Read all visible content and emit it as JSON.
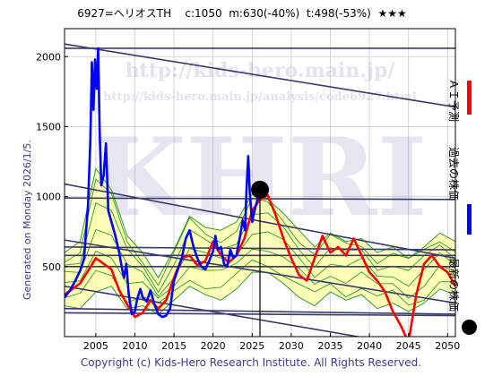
{
  "header": {
    "title": "6927=ヘリオスTH    c:1050  m:630(-40%)  t:498(-53%)  ★★★"
  },
  "footer": {
    "copyright": "Copyright (c) Kids-Hero Research Institute. All Rights Reserved."
  },
  "side": {
    "generated": "Generated on Monday 2026/1/5."
  },
  "watermark": {
    "url1": "http://kids-hero.main.jp/",
    "url2": "http://kids-hero.main.jp/analysis/code6927.html",
    "logo": "KHRI"
  },
  "legend": {
    "ai_label": "ＡＩ予測",
    "past_label": "過去の株価",
    "latest_label": "最新の株価",
    "ai_color": "#ff0000",
    "past_color": "#0000ff",
    "latest_color": "#000000"
  },
  "chart_data": {
    "type": "line",
    "xlim": [
      2001,
      2051
    ],
    "ylim": [
      0,
      2200
    ],
    "x_ticks": [
      2005,
      2010,
      2015,
      2020,
      2025,
      2030,
      2035,
      2040,
      2045,
      2050
    ],
    "y_ticks": [
      500,
      1000,
      1500,
      2000
    ],
    "grid": true,
    "latest_point": {
      "x": 2026.0,
      "y": 1050
    },
    "current_year": 2026.0,
    "colors": {
      "past": "#0000ff",
      "ai": "#ff0000",
      "band_fill": "#ffffa0",
      "band_line": "#2e9c2e",
      "trend": "#3a3a6a"
    },
    "trendlines": [
      {
        "from": [
          2001,
          2090
        ],
        "to": [
          2051,
          1640
        ]
      },
      {
        "from": [
          2001,
          2060
        ],
        "to": [
          2051,
          2060
        ]
      },
      {
        "from": [
          2001,
          1090
        ],
        "to": [
          2051,
          560
        ]
      },
      {
        "from": [
          2001,
          990
        ],
        "to": [
          2051,
          980
        ]
      },
      {
        "from": [
          2001,
          690
        ],
        "to": [
          2051,
          240
        ]
      },
      {
        "from": [
          2001,
          640
        ],
        "to": [
          2051,
          620
        ]
      },
      {
        "from": [
          2001,
          580
        ],
        "to": [
          2051,
          580
        ]
      },
      {
        "from": [
          2001,
          500
        ],
        "to": [
          2051,
          500
        ]
      },
      {
        "from": [
          2001,
          360
        ],
        "to": [
          2051,
          -120
        ]
      },
      {
        "from": [
          2001,
          200
        ],
        "to": [
          2051,
          160
        ]
      },
      {
        "from": [
          2001,
          170
        ],
        "to": [
          2051,
          150
        ]
      }
    ],
    "past_series": {
      "name": "過去の株価",
      "x": [
        2001.0,
        2001.7,
        2002.3,
        2003.0,
        2003.5,
        2004.0,
        2004.3,
        2004.5,
        2004.7,
        2004.9,
        2005.1,
        2005.3,
        2005.5,
        2005.7,
        2006.0,
        2006.3,
        2006.6,
        2007.0,
        2007.5,
        2008.0,
        2008.3,
        2008.6,
        2008.9,
        2009.2,
        2009.6,
        2010.0,
        2010.3,
        2010.7,
        2011.0,
        2011.5,
        2012.0,
        2012.5,
        2013.0,
        2013.5,
        2014.0,
        2014.5,
        2015.0,
        2015.5,
        2016.0,
        2016.5,
        2017.0,
        2017.5,
        2018.0,
        2018.5,
        2019.0,
        2019.5,
        2020.0,
        2020.3,
        2020.6,
        2021.0,
        2021.4,
        2021.8,
        2022.2,
        2022.6,
        2023.0,
        2023.4,
        2023.8,
        2024.1,
        2024.3,
        2024.5,
        2024.7,
        2025.0,
        2025.3,
        2025.6,
        2026.0
      ],
      "y": [
        280,
        330,
        390,
        470,
        560,
        940,
        1400,
        1960,
        1620,
        1980,
        1770,
        2060,
        1460,
        1080,
        1150,
        1380,
        900,
        820,
        720,
        600,
        500,
        420,
        520,
        310,
        160,
        180,
        270,
        340,
        280,
        250,
        330,
        230,
        160,
        140,
        150,
        200,
        400,
        480,
        560,
        700,
        760,
        640,
        560,
        500,
        480,
        540,
        610,
        720,
        620,
        640,
        520,
        500,
        620,
        560,
        580,
        700,
        830,
        760,
        1080,
        1290,
        1020,
        820,
        900,
        960,
        1050
      ]
    },
    "ai_series": {
      "name": "ＡＩ予測",
      "x": [
        2001,
        2002,
        2003,
        2004,
        2005,
        2006,
        2007,
        2008,
        2009,
        2010,
        2011,
        2012,
        2013,
        2014,
        2015,
        2016,
        2017,
        2018,
        2019,
        2020,
        2021,
        2022,
        2023,
        2024,
        2025,
        2026,
        2027,
        2028,
        2029,
        2030,
        2031,
        2032,
        2033,
        2034,
        2035,
        2036,
        2037,
        2038,
        2039,
        2040,
        2041,
        2042,
        2043,
        2044,
        2045,
        2046,
        2047,
        2048,
        2049,
        2050,
        2051
      ],
      "y": [
        300,
        340,
        380,
        470,
        560,
        520,
        480,
        330,
        230,
        140,
        170,
        260,
        200,
        260,
        420,
        560,
        580,
        510,
        540,
        680,
        580,
        530,
        580,
        700,
        900,
        980,
        1010,
        870,
        700,
        560,
        440,
        400,
        560,
        720,
        600,
        640,
        580,
        700,
        580,
        460,
        400,
        320,
        180,
        80,
        -40,
        300,
        520,
        580,
        500,
        460,
        360
      ]
    },
    "band_upper": {
      "x": [
        2001,
        2003,
        2005,
        2007,
        2009,
        2011,
        2013,
        2015,
        2017,
        2019,
        2021,
        2023,
        2025,
        2027,
        2029,
        2031,
        2033,
        2035,
        2037,
        2039,
        2041,
        2043,
        2045,
        2047,
        2049,
        2051
      ],
      "y": [
        600,
        680,
        1200,
        1050,
        720,
        600,
        420,
        620,
        860,
        780,
        760,
        820,
        1020,
        980,
        880,
        760,
        640,
        740,
        680,
        700,
        600,
        640,
        560,
        640,
        740,
        680
      ]
    },
    "band_lower": {
      "x": [
        2001,
        2003,
        2005,
        2007,
        2009,
        2011,
        2013,
        2015,
        2017,
        2019,
        2021,
        2023,
        2025,
        2027,
        2029,
        2031,
        2033,
        2035,
        2037,
        2039,
        2041,
        2043,
        2045,
        2047,
        2049,
        2051
      ],
      "y": [
        220,
        200,
        320,
        360,
        200,
        220,
        160,
        260,
        360,
        300,
        260,
        340,
        460,
        460,
        380,
        280,
        220,
        320,
        260,
        300,
        200,
        240,
        180,
        240,
        340,
        300
      ]
    }
  }
}
